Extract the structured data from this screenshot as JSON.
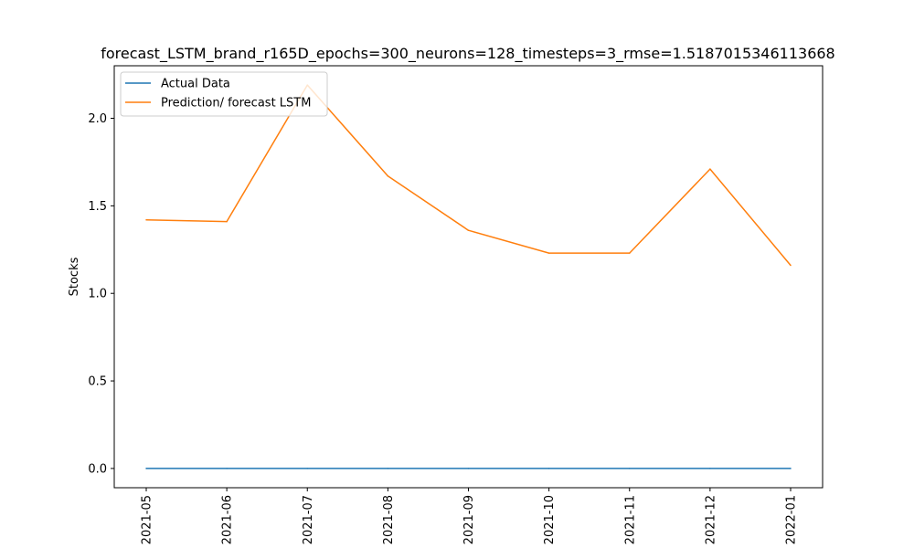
{
  "chart_data": {
    "type": "line",
    "title": "forecast_LSTM_brand_r165D_epochs=300_neurons=128_timesteps=3_rmse=1.5187015346113668",
    "xlabel": "",
    "ylabel": "Stocks",
    "x": [
      "2021-05",
      "2021-06",
      "2021-07",
      "2021-08",
      "2021-09",
      "2021-10",
      "2021-11",
      "2021-12",
      "2022-01"
    ],
    "yticks": [
      "0.0",
      "0.5",
      "1.0",
      "1.5",
      "2.0"
    ],
    "ylim": [
      -0.11,
      2.3
    ],
    "grid": false,
    "legend_position": "upper-left",
    "series": [
      {
        "name": "Actual Data",
        "color": "#1f77b4",
        "values": [
          0,
          0,
          0,
          0,
          0,
          0,
          0,
          0,
          0
        ]
      },
      {
        "name": "Prediction/ forecast LSTM",
        "color": "#ff7f0e",
        "values": [
          1.42,
          1.41,
          2.19,
          1.67,
          1.36,
          1.23,
          1.23,
          1.71,
          1.16
        ]
      }
    ]
  }
}
